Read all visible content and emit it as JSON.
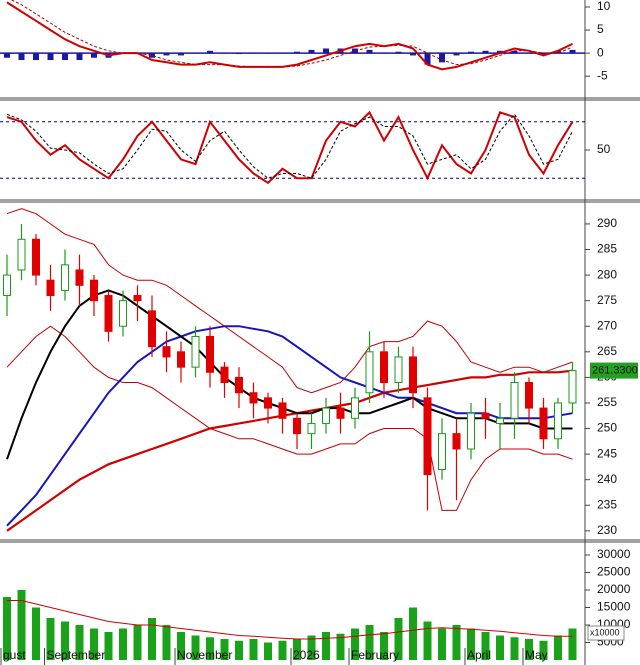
{
  "chart_data": [
    {
      "type": "macd",
      "ylim": [
        -8,
        11
      ],
      "yticks": [
        -5,
        0,
        5,
        10
      ],
      "histogram": {
        "color": "#1a1aa0",
        "values": [
          -1,
          -1.5,
          -1.5,
          -1.5,
          -1.5,
          -1.5,
          -1,
          -1,
          0,
          0,
          -1,
          -0.5,
          -0.5,
          0,
          0.5,
          0,
          -0.2,
          0,
          0,
          0,
          0.3,
          0.7,
          1,
          1,
          1,
          0.7,
          0,
          0.3,
          -0.5,
          -2.5,
          -2,
          -0.5,
          0.3,
          0.5,
          0.5,
          0.5,
          0,
          -0.5,
          0.5,
          0.7
        ]
      },
      "series": [
        {
          "color": "#d00000",
          "width": 2,
          "dash": false,
          "values": [
            11,
            9,
            7,
            5,
            3,
            1.5,
            0.5,
            -0.5,
            0,
            0,
            -1.5,
            -2,
            -2.5,
            -2.5,
            -2,
            -2.5,
            -3,
            -3,
            -3,
            -3,
            -2.5,
            -1.5,
            -0.5,
            0.5,
            1.5,
            2,
            1.5,
            2,
            1,
            -2.5,
            -3.5,
            -3,
            -2,
            -1,
            0,
            1,
            0.5,
            -0.5,
            0.5,
            2
          ]
        },
        {
          "color": "#b00000",
          "width": 1,
          "dash": true,
          "values": [
            12,
            10.5,
            8.5,
            6.5,
            4.5,
            3,
            1.5,
            0.5,
            0,
            0,
            -0.5,
            -1.5,
            -2,
            -2.5,
            -2.5,
            -2.5,
            -2.8,
            -3,
            -3,
            -3,
            -2.8,
            -2.2,
            -1.5,
            -0.5,
            0.5,
            1.3,
            1.5,
            1.7,
            1.5,
            0,
            -1.5,
            -2.5,
            -2.3,
            -1.5,
            -0.5,
            0.5,
            0.5,
            0,
            0,
            1.3
          ]
        }
      ]
    },
    {
      "type": "stochastic",
      "ylim": [
        0,
        100
      ],
      "yticks": [
        50
      ],
      "levels": [
        80,
        20
      ],
      "level_color": "#000080",
      "series": [
        {
          "color": "#d00000",
          "width": 2,
          "dash": false,
          "values": [
            85,
            80,
            60,
            45,
            55,
            40,
            30,
            20,
            40,
            65,
            80,
            60,
            40,
            35,
            80,
            60,
            40,
            25,
            15,
            30,
            20,
            20,
            60,
            80,
            75,
            90,
            60,
            85,
            50,
            20,
            55,
            35,
            25,
            50,
            90,
            85,
            45,
            25,
            55,
            80
          ]
        },
        {
          "color": "#000000",
          "width": 1,
          "dash": true,
          "values": [
            88,
            82,
            70,
            52,
            50,
            47,
            35,
            25,
            30,
            50,
            72,
            70,
            50,
            38,
            60,
            70,
            50,
            32,
            20,
            25,
            25,
            20,
            40,
            70,
            78,
            85,
            75,
            75,
            65,
            35,
            40,
            45,
            30,
            40,
            70,
            88,
            65,
            35,
            40,
            70
          ]
        }
      ]
    },
    {
      "type": "candlestick",
      "ylim": [
        228.6,
        293.7
      ],
      "yticks": [
        230,
        235,
        240,
        245,
        250,
        255,
        260,
        265,
        270,
        275,
        280,
        285,
        290
      ],
      "up_color": "#1a9a1a",
      "down_color": "#e00000",
      "open": [
        276,
        281,
        287,
        279,
        277,
        281,
        279,
        276,
        270,
        276,
        273,
        266,
        265,
        262,
        268,
        262,
        260,
        257,
        256,
        255,
        252,
        249,
        251,
        254,
        252,
        257,
        265,
        259,
        264,
        256,
        242,
        249,
        246,
        253,
        251,
        252,
        259,
        254,
        248,
        255
      ],
      "high": [
        284,
        290,
        288,
        282,
        285,
        284,
        280,
        277,
        277,
        278,
        276,
        269,
        267,
        270,
        270,
        263,
        262,
        259,
        257,
        256,
        253,
        253,
        256,
        257,
        258,
        269,
        267,
        266,
        266,
        258,
        252,
        252,
        255,
        256,
        255,
        261,
        260,
        256,
        256,
        263
      ],
      "low": [
        272,
        279,
        278,
        273,
        275,
        274,
        272,
        267,
        268,
        271,
        264,
        261,
        259,
        260,
        258,
        256,
        254,
        252,
        251,
        249,
        246,
        246,
        249,
        249,
        250,
        255,
        256,
        257,
        254,
        234,
        240,
        236,
        244,
        248,
        246,
        248,
        251,
        246,
        246,
        253
      ],
      "close": [
        280,
        287,
        280,
        276,
        282,
        278,
        275,
        269,
        275,
        275,
        266,
        264,
        262,
        268,
        261,
        259,
        257,
        255,
        254,
        252,
        249,
        251,
        254,
        252,
        256,
        265,
        259,
        264,
        257,
        241,
        249,
        246,
        253,
        252,
        252,
        259,
        254,
        248,
        255,
        261.33
      ],
      "last_label": "261.3300",
      "last_label_color": "#22a022",
      "series": [
        {
          "color": "#c00000",
          "width": 1,
          "dash": false,
          "values": [
            292,
            293,
            292,
            290,
            288,
            287,
            286,
            282,
            280,
            279,
            279,
            278,
            276,
            274,
            272,
            270,
            268,
            266,
            264,
            262,
            258,
            257,
            258,
            259,
            262,
            266,
            267,
            267,
            268,
            271,
            270,
            267,
            263,
            262,
            261,
            262,
            262,
            261,
            262,
            263
          ]
        },
        {
          "color": "#c00000",
          "width": 1,
          "dash": false,
          "values": [
            262,
            265,
            268,
            270,
            268,
            265,
            262,
            260,
            259,
            259,
            258,
            256,
            254,
            252,
            250,
            249,
            248,
            248,
            247,
            246,
            245,
            245,
            246,
            247,
            247,
            249,
            250,
            250,
            250,
            248,
            234,
            234,
            240,
            244,
            246,
            246,
            246,
            245,
            245,
            244
          ]
        },
        {
          "color": "#d00000",
          "width": 2.2,
          "dash": false,
          "values": [
            230,
            232,
            234,
            236,
            238,
            240,
            241.5,
            243,
            244,
            245,
            246,
            247,
            248,
            249,
            250,
            250.5,
            251,
            251.5,
            252,
            252.5,
            253,
            253.5,
            254,
            254.5,
            255,
            256,
            257,
            257.5,
            258,
            258.5,
            259,
            259.5,
            260,
            260,
            260.5,
            260.5,
            261,
            261,
            261,
            261.3
          ]
        },
        {
          "color": "#1515c0",
          "width": 2,
          "dash": false,
          "values": [
            231,
            234,
            237,
            241,
            245,
            249,
            253,
            257,
            260,
            263,
            265,
            267,
            268,
            269,
            269.5,
            270,
            270,
            269.5,
            269,
            268,
            266,
            264,
            262,
            260,
            259,
            258,
            257,
            256,
            256,
            255,
            254,
            253,
            253,
            253,
            252,
            252,
            252,
            252,
            252.5,
            253
          ]
        },
        {
          "color": "#000000",
          "width": 2,
          "dash": false,
          "values": [
            244,
            252,
            259,
            265,
            270,
            274,
            276,
            277,
            276,
            274,
            272,
            270,
            268,
            266,
            263,
            260,
            258,
            256,
            255,
            254,
            253,
            253,
            254,
            254,
            253,
            253,
            254,
            255,
            256,
            254,
            253,
            252,
            252,
            252,
            251,
            251,
            251,
            250,
            250,
            250
          ]
        }
      ]
    },
    {
      "type": "bar",
      "ylim": [
        0,
        33000
      ],
      "yticks": [
        5000,
        10000,
        15000,
        20000,
        25000,
        30000
      ],
      "unit_label": "x10000",
      "color": "#1aa31a",
      "categories": [
        "gust",
        null,
        null,
        "September",
        null,
        null,
        null,
        null,
        null,
        null,
        null,
        null,
        "November",
        null,
        null,
        null,
        null,
        null,
        null,
        null,
        "2026",
        null,
        null,
        null,
        "February",
        null,
        null,
        null,
        null,
        null,
        null,
        null,
        "April",
        null,
        null,
        null,
        "May",
        null,
        null,
        null
      ],
      "values": [
        18000,
        20000,
        15000,
        12000,
        11000,
        10000,
        9000,
        8000,
        9000,
        10000,
        12000,
        10000,
        8000,
        7000,
        6500,
        6000,
        5500,
        6000,
        5000,
        5500,
        6000,
        7000,
        8000,
        7500,
        9000,
        10000,
        8000,
        12000,
        15000,
        11000,
        9000,
        10000,
        9000,
        8000,
        7000,
        6500,
        6000,
        5500,
        7000,
        9000
      ],
      "series": [
        {
          "color": "#d00000",
          "width": 1,
          "dash": false,
          "values": [
            17000,
            17000,
            16000,
            15000,
            14000,
            13000,
            12000,
            11000,
            10500,
            10000,
            10000,
            9500,
            9000,
            8500,
            8000,
            7500,
            7000,
            6800,
            6500,
            6200,
            6000,
            6000,
            6200,
            6400,
            6800,
            7200,
            7500,
            8000,
            8500,
            9000,
            9200,
            9000,
            8800,
            8500,
            8200,
            7800,
            7400,
            7000,
            6800,
            6800
          ]
        }
      ]
    }
  ]
}
